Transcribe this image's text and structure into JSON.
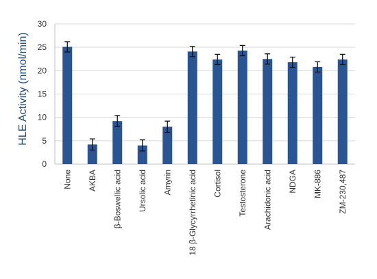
{
  "chart_data": {
    "type": "bar",
    "ylabel": "HLE Activity (nmol/min)",
    "ylim": [
      0,
      30
    ],
    "yticks": [
      0,
      5,
      10,
      15,
      20,
      25,
      30
    ],
    "grid": true,
    "bar_color": "#2b5592",
    "error_color": "#111111",
    "categories": [
      "None",
      "AKBA",
      "β-Boswellic acid",
      "Ursolic acid",
      "Amyrin",
      "18 β-Glycyrrhetinic acid",
      "Cortisol",
      "Testosterone",
      "Arachidonic acid",
      "NDGA",
      "MK-886",
      "ZM-230,487"
    ],
    "values": [
      25.1,
      4.2,
      9.2,
      4.0,
      8.0,
      24.1,
      22.4,
      24.3,
      22.5,
      21.8,
      20.8,
      22.4
    ],
    "errors": [
      1.1,
      1.2,
      1.2,
      1.2,
      1.2,
      1.1,
      1.1,
      1.1,
      1.1,
      1.1,
      1.1,
      1.1
    ]
  }
}
